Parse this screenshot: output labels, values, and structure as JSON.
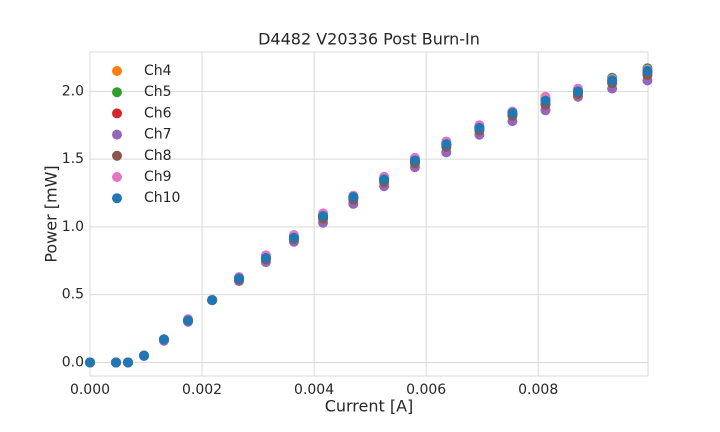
{
  "chart_data": {
    "type": "scatter",
    "title": "D4482 V20336 Post Burn-In",
    "x_label": "Current [A]",
    "y_label": "Power [mW]",
    "x": [
      0,
      0.000464,
      0.000679,
      0.000964,
      0.00132,
      0.00175,
      0.00218,
      0.00266,
      0.00314,
      0.00364,
      0.00416,
      0.0047,
      0.00525,
      0.0058,
      0.00636,
      0.00695,
      0.00754,
      0.00813,
      0.00871,
      0.00932,
      0.00995
    ],
    "series": [
      {
        "name": "Ch4",
        "color": "#ff7f0e",
        "values": [
          0,
          0,
          0,
          0.05,
          0.17,
          0.31,
          0.46,
          0.62,
          0.77,
          0.92,
          1.08,
          1.22,
          1.35,
          1.49,
          1.61,
          1.73,
          1.83,
          1.93,
          2.0,
          2.08,
          2.15
        ]
      },
      {
        "name": "Ch5",
        "color": "#2ca02c",
        "values": [
          0,
          0,
          0,
          0.05,
          0.17,
          0.31,
          0.46,
          0.62,
          0.78,
          0.93,
          1.09,
          1.22,
          1.36,
          1.5,
          1.62,
          1.74,
          1.85,
          1.95,
          2.01,
          2.1,
          2.17
        ]
      },
      {
        "name": "Ch6",
        "color": "#d62728",
        "values": [
          0,
          0,
          0,
          0.05,
          0.17,
          0.31,
          0.46,
          0.61,
          0.77,
          0.91,
          1.07,
          1.21,
          1.34,
          1.48,
          1.6,
          1.72,
          1.83,
          1.91,
          1.99,
          2.07,
          2.14
        ]
      },
      {
        "name": "Ch7",
        "color": "#9467bd",
        "values": [
          0,
          0,
          0,
          0.05,
          0.16,
          0.3,
          0.46,
          0.6,
          0.74,
          0.89,
          1.03,
          1.17,
          1.3,
          1.44,
          1.55,
          1.68,
          1.78,
          1.86,
          1.96,
          2.02,
          2.08
        ]
      },
      {
        "name": "Ch8",
        "color": "#8c564b",
        "values": [
          0,
          0,
          0,
          0.05,
          0.17,
          0.31,
          0.46,
          0.61,
          0.76,
          0.91,
          1.06,
          1.2,
          1.33,
          1.47,
          1.59,
          1.71,
          1.82,
          1.9,
          1.98,
          2.06,
          2.12
        ]
      },
      {
        "name": "Ch9",
        "color": "#e377c2",
        "values": [
          0,
          0,
          0,
          0.05,
          0.17,
          0.32,
          0.46,
          0.63,
          0.79,
          0.94,
          1.1,
          1.23,
          1.37,
          1.51,
          1.63,
          1.75,
          1.85,
          1.96,
          2.02,
          2.09,
          2.16
        ]
      },
      {
        "name": "Ch10",
        "color": "#1f77b4",
        "values": [
          0,
          0,
          0,
          0.05,
          0.17,
          0.31,
          0.46,
          0.62,
          0.77,
          0.92,
          1.08,
          1.22,
          1.35,
          1.49,
          1.61,
          1.73,
          1.84,
          1.93,
          2.0,
          2.08,
          2.15
        ]
      }
    ],
    "xlim": [
      0,
      0.00996
    ],
    "ylim": [
      -0.1,
      2.29
    ],
    "xticks": [
      {
        "value": 0,
        "label": "0.000"
      },
      {
        "value": 0.002,
        "label": "0.002"
      },
      {
        "value": 0.004,
        "label": "0.004"
      },
      {
        "value": 0.006,
        "label": "0.006"
      },
      {
        "value": 0.008,
        "label": "0.008"
      }
    ],
    "yticks": [
      {
        "value": 0,
        "label": "0.0"
      },
      0.5,
      {
        "value": 1,
        "label": "1.0"
      },
      1.5,
      {
        "value": 2,
        "label": "2.0"
      }
    ],
    "grid": true,
    "legend": "upper left"
  }
}
